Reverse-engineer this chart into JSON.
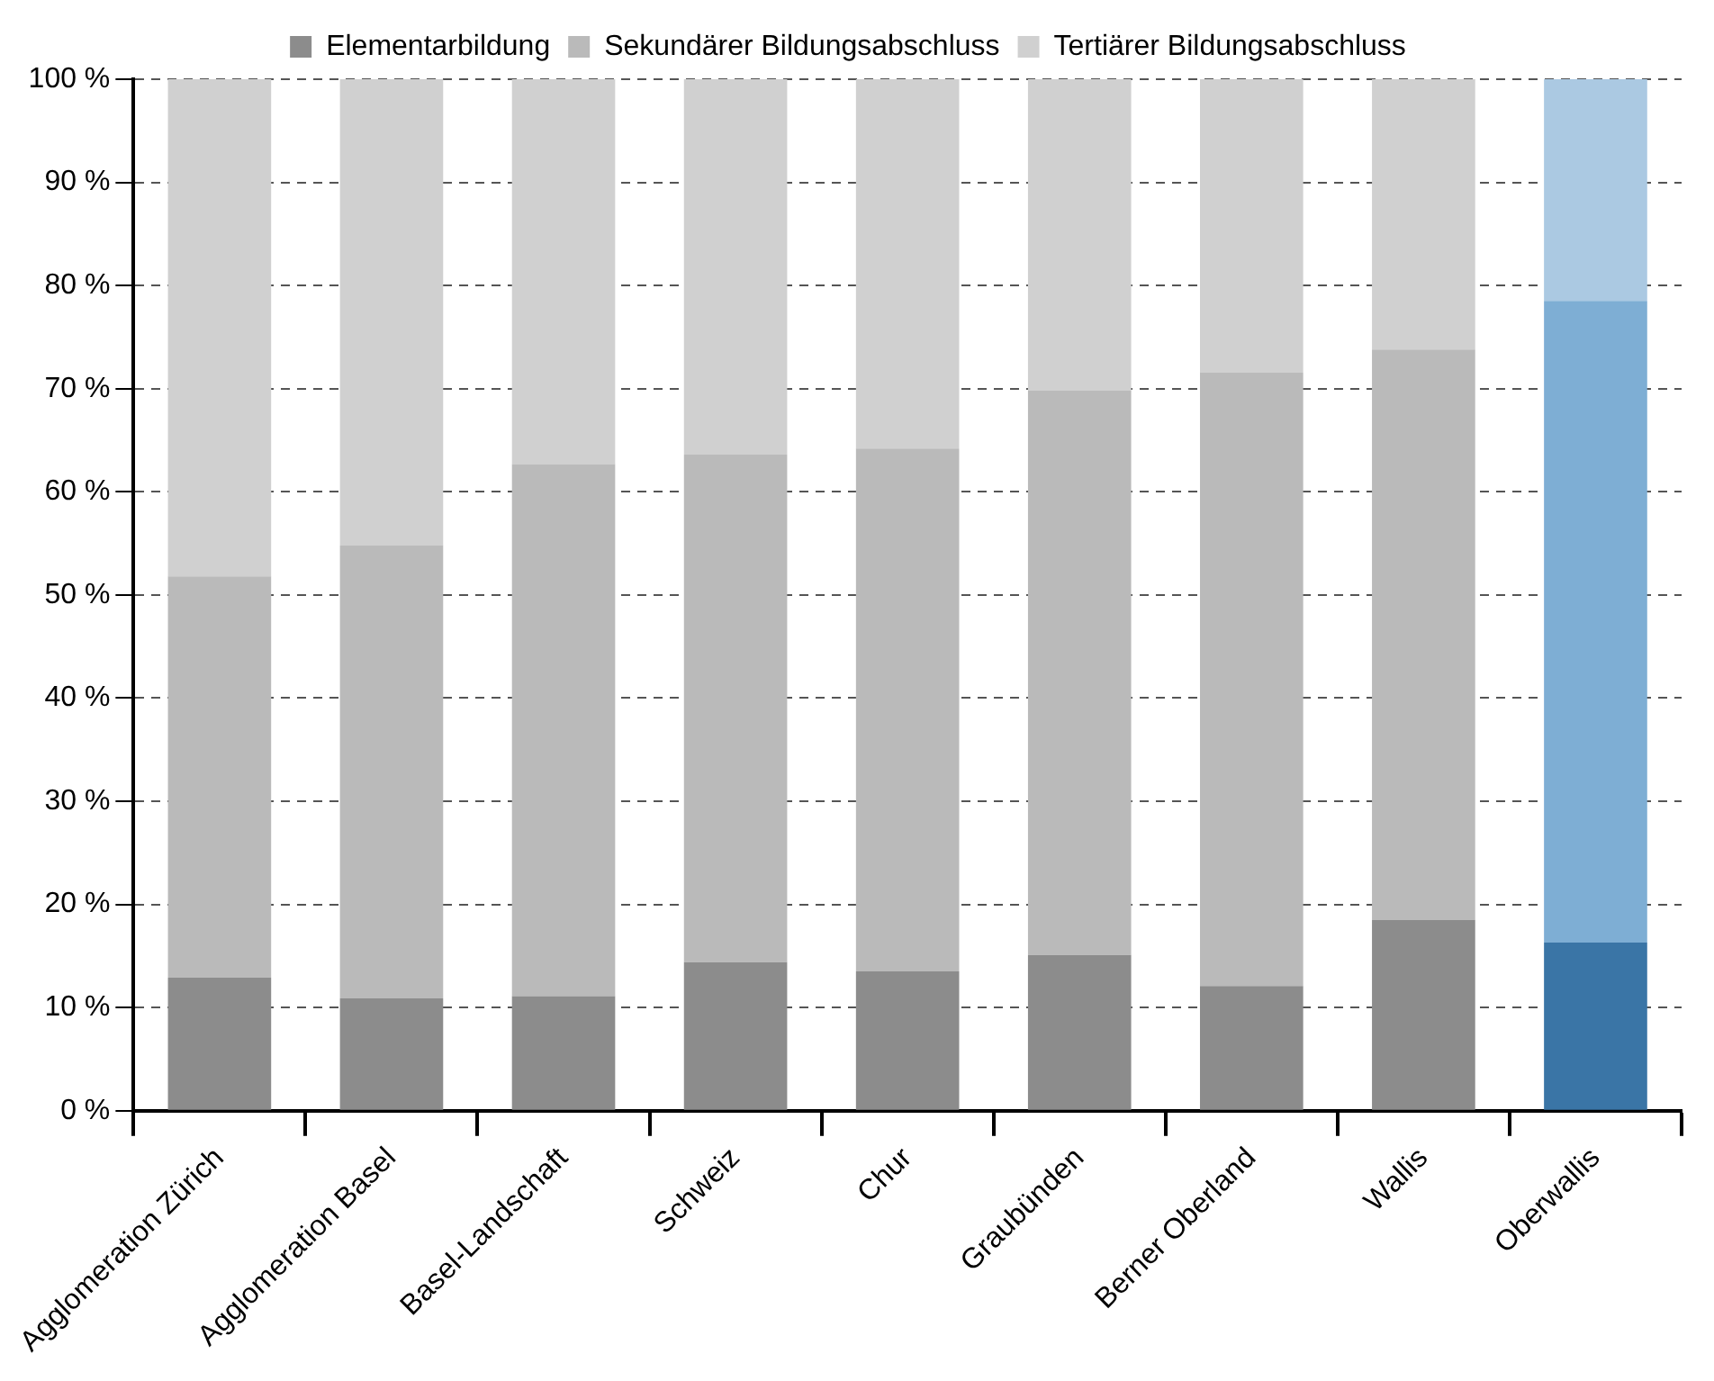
{
  "chart_data": {
    "type": "bar",
    "stacked": true,
    "categories": [
      "Agglomeration Zürich",
      "Agglomeration Basel",
      "Basel-Landschaft",
      "Schweiz",
      "Chur",
      "Graubünden",
      "Berner Oberland",
      "Wallis",
      "Oberwallis"
    ],
    "series": [
      {
        "name": "Elementarbildung",
        "color": "#8c8c8c",
        "colors": [
          "#8c8c8c",
          "#8c8c8c",
          "#8c8c8c",
          "#8c8c8c",
          "#8c8c8c",
          "#8c8c8c",
          "#8c8c8c",
          "#8c8c8c",
          "#3a75a6"
        ],
        "values": [
          12.9,
          10.9,
          11.1,
          14.4,
          13.5,
          15.1,
          12.1,
          18.5,
          16.3
        ]
      },
      {
        "name": "Sekundärer Bildungsabschluss",
        "color": "#bababa",
        "colors": [
          "#bababa",
          "#bababa",
          "#bababa",
          "#bababa",
          "#bababa",
          "#bababa",
          "#bababa",
          "#bababa",
          "#7eaed4"
        ],
        "values": [
          38.9,
          43.9,
          51.6,
          49.2,
          50.7,
          54.7,
          59.5,
          55.3,
          62.2
        ]
      },
      {
        "name": "Tertiärer Bildungsabschluss",
        "color": "#d0d0d0",
        "colors": [
          "#d0d0d0",
          "#d0d0d0",
          "#d0d0d0",
          "#d0d0d0",
          "#d0d0d0",
          "#d0d0d0",
          "#d0d0d0",
          "#d0d0d0",
          "#abc9e2"
        ],
        "values": [
          48.2,
          45.2,
          37.3,
          36.4,
          35.8,
          30.2,
          28.4,
          26.2,
          21.5
        ]
      }
    ],
    "ylim": [
      0,
      100
    ],
    "yticks": [
      {
        "value": 0,
        "label": "0 %"
      },
      {
        "value": 10,
        "label": "10 %"
      },
      {
        "value": 20,
        "label": "20 %"
      },
      {
        "value": 30,
        "label": "30 %"
      },
      {
        "value": 40,
        "label": "40 %"
      },
      {
        "value": 50,
        "label": "50 %"
      },
      {
        "value": 60,
        "label": "60 %"
      },
      {
        "value": 70,
        "label": "70 %"
      },
      {
        "value": 80,
        "label": "80 %"
      },
      {
        "value": 90,
        "label": "90 %"
      },
      {
        "value": 100,
        "label": "100 %"
      }
    ],
    "grid": "y",
    "legend": "top"
  }
}
